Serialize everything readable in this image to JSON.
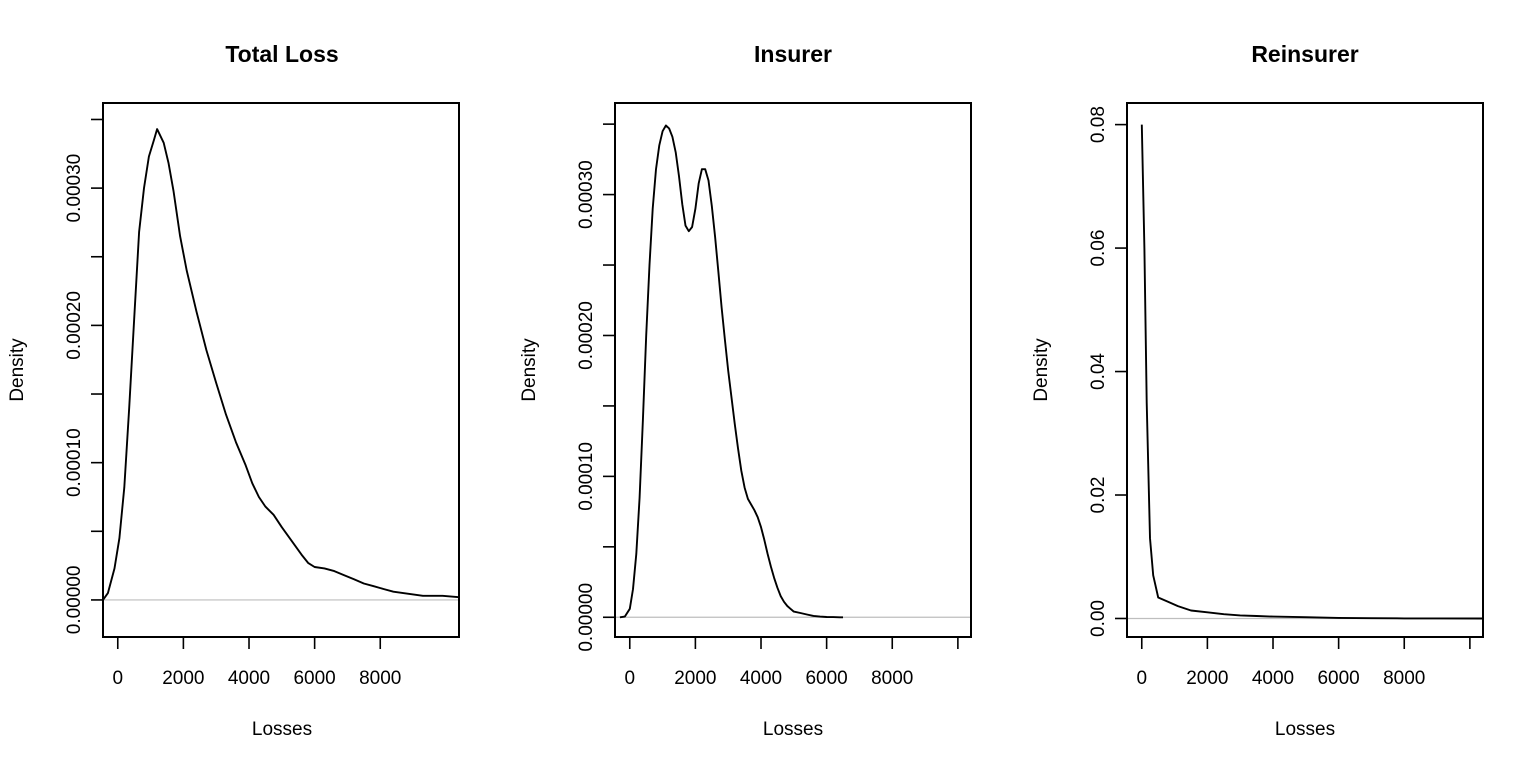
{
  "chart_data": [
    {
      "type": "line",
      "title": "Total Loss",
      "xlabel": "Losses",
      "ylabel": "Density",
      "xlim": [
        -450,
        10400
      ],
      "ylim": [
        -2.7e-05,
        0.000362
      ],
      "xticks": [
        0,
        2000,
        4000,
        6000,
        8000
      ],
      "xtick_labels": [
        "0",
        "2000",
        "4000",
        "6000",
        "8000"
      ],
      "yticks": [
        0,
        5e-05,
        0.0001,
        0.00015,
        0.0002,
        0.00025,
        0.0003,
        0.00035
      ],
      "ytick_labels": [
        "0.00000",
        "",
        "0.00010",
        "",
        "0.00020",
        "",
        "0.00030",
        ""
      ],
      "baseline": 0,
      "x": [
        -450,
        -300,
        -100,
        50,
        200,
        350,
        500,
        650,
        800,
        950,
        1100,
        1200,
        1300,
        1400,
        1550,
        1700,
        1900,
        2100,
        2400,
        2700,
        3000,
        3300,
        3600,
        3900,
        4100,
        4300,
        4500,
        4750,
        5000,
        5300,
        5600,
        5800,
        6000,
        6300,
        6600,
        6900,
        7200,
        7500,
        7800,
        8100,
        8400,
        8700,
        9000,
        9300,
        9600,
        9900,
        10400
      ],
      "y": [
        0,
        5e-06,
        2.3e-05,
        4.5e-05,
        8.2e-05,
        0.00014,
        0.000205,
        0.000268,
        0.0003,
        0.000323,
        0.000335,
        0.000343,
        0.000338,
        0.000333,
        0.000318,
        0.000298,
        0.000265,
        0.00024,
        0.00021,
        0.000182,
        0.000158,
        0.000135,
        0.000115,
        9.8e-05,
        8.5e-05,
        7.5e-05,
        6.8e-05,
        6.2e-05,
        5.3e-05,
        4.3e-05,
        3.3e-05,
        2.7e-05,
        2.4e-05,
        2.3e-05,
        2.1e-05,
        1.8e-05,
        1.5e-05,
        1.2e-05,
        1e-05,
        8e-06,
        6e-06,
        5e-06,
        4e-06,
        3e-06,
        3e-06,
        3e-06,
        2e-06
      ]
    },
    {
      "type": "line",
      "title": "Insurer",
      "xlabel": "Losses",
      "ylabel": "Density",
      "xlim": [
        -450,
        10400
      ],
      "ylim": [
        -1.4e-05,
        0.000365
      ],
      "xticks": [
        0,
        2000,
        4000,
        6000,
        8000,
        10000
      ],
      "xtick_labels": [
        "0",
        "2000",
        "4000",
        "6000",
        "8000",
        ""
      ],
      "yticks": [
        0,
        5e-05,
        0.0001,
        0.00015,
        0.0002,
        0.00025,
        0.0003,
        0.00035
      ],
      "ytick_labels": [
        "0.00000",
        "",
        "0.00010",
        "",
        "0.00020",
        "",
        "0.00030",
        ""
      ],
      "baseline": 0,
      "x": [
        -300,
        -150,
        0,
        100,
        200,
        300,
        400,
        500,
        600,
        700,
        800,
        900,
        1000,
        1100,
        1200,
        1300,
        1400,
        1500,
        1600,
        1700,
        1800,
        1900,
        2000,
        2100,
        2200,
        2300,
        2400,
        2500,
        2600,
        2700,
        2800,
        2900,
        3000,
        3100,
        3200,
        3300,
        3400,
        3500,
        3600,
        3700,
        3800,
        3900,
        4000,
        4100,
        4200,
        4300,
        4400,
        4500,
        4600,
        4700,
        4800,
        4900,
        5000,
        5200,
        5400,
        5600,
        5800,
        6000,
        6200,
        6400,
        6500
      ],
      "y": [
        0,
        5e-07,
        6e-06,
        2e-05,
        4.5e-05,
        8.5e-05,
        0.00014,
        0.0002,
        0.00025,
        0.00029,
        0.000318,
        0.000335,
        0.000345,
        0.000349,
        0.000347,
        0.000341,
        0.00033,
        0.000313,
        0.000293,
        0.000278,
        0.000274,
        0.000277,
        0.00029,
        0.000308,
        0.000318,
        0.000318,
        0.00031,
        0.000292,
        0.00027,
        0.000245,
        0.00022,
        0.000197,
        0.000175,
        0.000156,
        0.000137,
        0.00012,
        0.000104,
        9.2e-05,
        8.4e-05,
        8e-05,
        7.6e-05,
        7.1e-05,
        6.4e-05,
        5.5e-05,
        4.5e-05,
        3.6e-05,
        2.8e-05,
        2.1e-05,
        1.5e-05,
        1.1e-05,
        8e-06,
        6e-06,
        4e-06,
        3e-06,
        2e-06,
        1e-06,
        5e-07,
        2e-07,
        1e-07,
        0,
        0
      ]
    },
    {
      "type": "line",
      "title": "Reinsurer",
      "xlabel": "Losses",
      "ylabel": "Density",
      "xlim": [
        -450,
        10400
      ],
      "ylim": [
        -0.003,
        0.0835
      ],
      "xticks": [
        0,
        2000,
        4000,
        6000,
        8000,
        10000
      ],
      "xtick_labels": [
        "0",
        "2000",
        "4000",
        "6000",
        "8000",
        ""
      ],
      "yticks": [
        0,
        0.02,
        0.04,
        0.06,
        0.08
      ],
      "ytick_labels": [
        "0.00",
        "0.02",
        "0.04",
        "0.06",
        "0.08"
      ],
      "baseline": 0,
      "x": [
        0,
        80,
        150,
        250,
        350,
        500,
        800,
        1100,
        1500,
        2000,
        2500,
        3000,
        3500,
        4000,
        5000,
        6000,
        7000,
        8000,
        9000,
        10400
      ],
      "y": [
        0.08,
        0.06,
        0.035,
        0.013,
        0.007,
        0.0034,
        0.0027,
        0.002,
        0.0013,
        0.001,
        0.0007,
        0.0005,
        0.0004,
        0.0003,
        0.0002,
        0.0001,
        5e-05,
        2e-05,
        1e-05,
        0
      ]
    }
  ]
}
